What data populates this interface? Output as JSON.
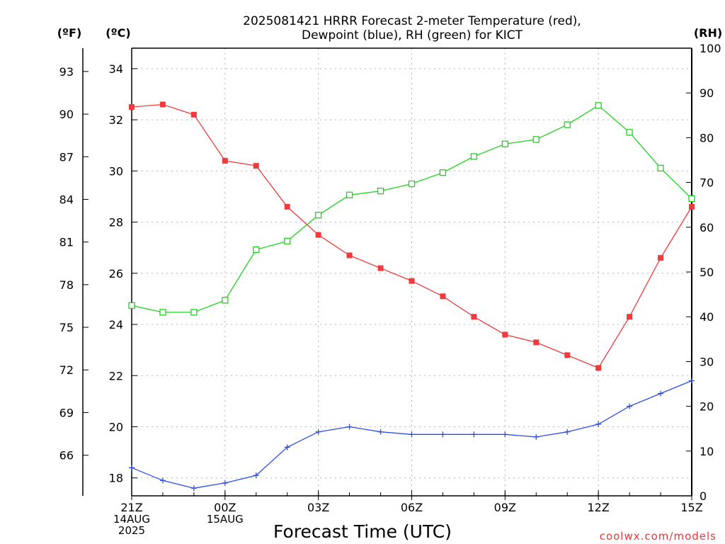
{
  "chart_data": {
    "type": "line",
    "title_line1": "2025081421 HRRR Forecast 2-meter Temperature (red),",
    "title_line2": "Dewpoint (blue), RH (green) for KICT",
    "xlabel": "Forecast Time (UTC)",
    "credit": "coolwx.com/models",
    "unit_f": "(ºF)",
    "unit_c": "(ºC)",
    "unit_rh": "(RH)",
    "x_ticks": [
      {
        "hour": 0,
        "lines": [
          "21Z",
          "14AUG",
          "2025"
        ]
      },
      {
        "hour": 3,
        "lines": [
          "00Z",
          "15AUG"
        ]
      },
      {
        "hour": 6,
        "lines": [
          "03Z"
        ]
      },
      {
        "hour": 9,
        "lines": [
          "06Z"
        ]
      },
      {
        "hour": 12,
        "lines": [
          "09Z"
        ]
      },
      {
        "hour": 15,
        "lines": [
          "12Z"
        ]
      },
      {
        "hour": 18,
        "lines": [
          "15Z"
        ]
      }
    ],
    "xlim": [
      0,
      18
    ],
    "ylim_c": [
      17.3,
      34.8
    ],
    "ylim_rh": [
      0,
      100
    ],
    "yticks_c": [
      18,
      20,
      22,
      24,
      26,
      28,
      30,
      32,
      34
    ],
    "yticks_f": [
      66,
      69,
      72,
      75,
      78,
      81,
      84,
      87,
      90,
      93
    ],
    "yticks_rh": [
      0,
      10,
      20,
      30,
      40,
      50,
      60,
      70,
      80,
      90,
      100
    ],
    "grid": true,
    "series": [
      {
        "name": "Temperature",
        "axis": "c",
        "color": "#ef3b3b",
        "marker": "filled-square",
        "values": [
          32.5,
          32.6,
          32.2,
          30.4,
          30.2,
          28.6,
          27.5,
          26.7,
          26.2,
          25.7,
          25.1,
          24.3,
          23.6,
          23.3,
          22.8,
          22.3,
          24.3,
          26.6,
          28.6
        ]
      },
      {
        "name": "Dewpoint",
        "axis": "c",
        "color": "#2c4ee8",
        "marker": "plus",
        "values": [
          18.4,
          17.9,
          17.6,
          17.8,
          18.1,
          19.2,
          19.8,
          20.0,
          19.8,
          19.7,
          19.7,
          19.7,
          19.7,
          19.6,
          19.8,
          20.1,
          20.8,
          21.3,
          21.8
        ]
      },
      {
        "name": "RH",
        "axis": "rh",
        "color": "#1ed41e",
        "marker": "open-square",
        "values": [
          42.5,
          41,
          41,
          43.7,
          55,
          56.9,
          62.7,
          67.2,
          68.1,
          69.7,
          72.2,
          75.8,
          78.6,
          79.6,
          82.9,
          87.2,
          81.2,
          73.2,
          66.4
        ]
      }
    ]
  }
}
